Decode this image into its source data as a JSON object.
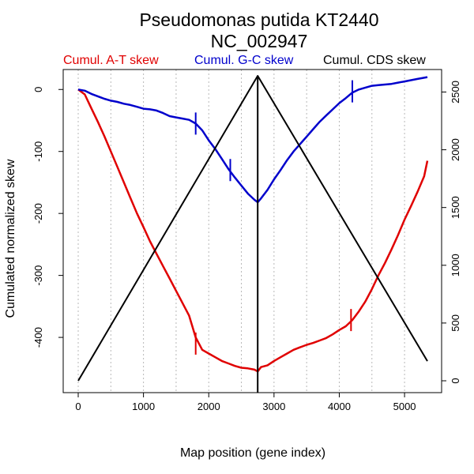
{
  "chart_data": {
    "type": "line",
    "title": "Pseudomonas putida KT2440",
    "subtitle": "NC_002947",
    "xlabel": "Map position (gene index)",
    "ylabel": "Cumulated normalized skew",
    "xlim": [
      0,
      5350
    ],
    "ylim": [
      -470,
      22
    ],
    "y2lim": [
      0,
      2640
    ],
    "x_ticks": [
      0,
      1000,
      2000,
      3000,
      4000,
      5000
    ],
    "y_ticks": [
      0,
      -100,
      -200,
      -300,
      -400
    ],
    "y2_ticks": [
      0,
      500,
      1000,
      1500,
      2000,
      2500
    ],
    "x_tick_labels": [
      "0",
      "1000",
      "2000",
      "3000",
      "4000",
      "5000"
    ],
    "y_tick_labels": [
      "0",
      "-100",
      "-200",
      "-300",
      "-400"
    ],
    "y2_tick_labels": [
      "0",
      "500",
      "1000",
      "1500",
      "2000",
      "2500"
    ],
    "grid_x": [
      0,
      500,
      1000,
      1500,
      2000,
      2500,
      3000,
      3500,
      4000,
      4500,
      5000
    ],
    "origin_x": 2750,
    "series": [
      {
        "name": "Cumul. A-T skew",
        "color": "#e00000",
        "axis": "left",
        "x": [
          0,
          100,
          200,
          300,
          400,
          500,
          600,
          700,
          800,
          900,
          1000,
          1100,
          1200,
          1300,
          1400,
          1500,
          1600,
          1700,
          1800,
          1900,
          2000,
          2100,
          2200,
          2300,
          2400,
          2500,
          2600,
          2700,
          2750,
          2800,
          2900,
          3000,
          3100,
          3200,
          3300,
          3400,
          3500,
          3600,
          3700,
          3800,
          3900,
          4000,
          4100,
          4200,
          4300,
          4400,
          4500,
          4600,
          4700,
          4800,
          4900,
          5000,
          5100,
          5200,
          5300,
          5350
        ],
        "y": [
          0,
          -8,
          -30,
          -52,
          -75,
          -100,
          -125,
          -150,
          -175,
          -200,
          -222,
          -245,
          -265,
          -285,
          -305,
          -325,
          -345,
          -365,
          -400,
          -420,
          -426,
          -432,
          -438,
          -442,
          -446,
          -449,
          -450,
          -452,
          -455,
          -448,
          -445,
          -438,
          -432,
          -426,
          -420,
          -416,
          -412,
          -409,
          -405,
          -401,
          -395,
          -388,
          -382,
          -372,
          -358,
          -342,
          -322,
          -300,
          -280,
          -258,
          -235,
          -210,
          -188,
          -165,
          -140,
          -115
        ]
      },
      {
        "name": "Cumul. G-C skew",
        "color": "#0000cc",
        "axis": "left",
        "x": [
          0,
          100,
          200,
          300,
          400,
          500,
          600,
          700,
          800,
          900,
          1000,
          1100,
          1200,
          1300,
          1400,
          1500,
          1600,
          1700,
          1800,
          1900,
          2000,
          2100,
          2200,
          2300,
          2400,
          2500,
          2600,
          2700,
          2750,
          2800,
          2900,
          3000,
          3100,
          3200,
          3300,
          3400,
          3500,
          3600,
          3700,
          3800,
          3900,
          4000,
          4100,
          4200,
          4300,
          4400,
          4500,
          4600,
          4700,
          4800,
          4900,
          5000,
          5100,
          5200,
          5300,
          5350
        ],
        "y": [
          0,
          -2,
          -7,
          -11,
          -15,
          -18,
          -20,
          -23,
          -25,
          -28,
          -31,
          -32,
          -34,
          -38,
          -43,
          -45,
          -47,
          -49,
          -55,
          -66,
          -82,
          -96,
          -112,
          -128,
          -142,
          -155,
          -168,
          -178,
          -182,
          -176,
          -162,
          -145,
          -130,
          -114,
          -100,
          -88,
          -76,
          -64,
          -52,
          -42,
          -32,
          -22,
          -14,
          -5,
          0,
          3,
          6,
          7,
          8,
          9,
          11,
          13,
          15,
          17,
          19,
          20
        ]
      },
      {
        "name": "Cumul. CDS skew",
        "color": "#000000",
        "axis": "right",
        "x": [
          0,
          2750,
          5350
        ],
        "y": [
          0,
          2640,
          170
        ]
      }
    ],
    "markers": [
      {
        "series": "Cumul. A-T skew",
        "x": 1800,
        "y": -410
      },
      {
        "series": "Cumul. A-T skew",
        "x": 4180,
        "y": -372
      },
      {
        "series": "Cumul. G-C skew",
        "x": 1800,
        "y": -55
      },
      {
        "series": "Cumul. G-C skew",
        "x": 2330,
        "y": -130
      },
      {
        "series": "Cumul. G-C skew",
        "x": 4200,
        "y": -3
      }
    ]
  }
}
